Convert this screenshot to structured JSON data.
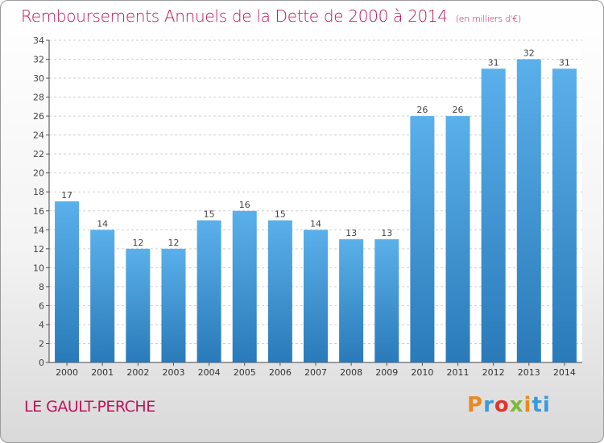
{
  "title": "Remboursements Annuels de la Dette de 2000 à 2014",
  "unit": "(en milliers d'€)",
  "commune": "LE GAULT-PERCHE",
  "logo": {
    "letters": [
      "P",
      "r",
      "o",
      "x",
      "i",
      "ti"
    ],
    "text": "Proxiti"
  },
  "colors": {
    "title": "#c0145a",
    "bar_top": "#5ab0ea",
    "bar_bottom": "#2a7ab9",
    "grid": "#d0d0d0"
  },
  "chart_data": {
    "type": "bar",
    "categories": [
      "2000",
      "2001",
      "2002",
      "2003",
      "2004",
      "2005",
      "2006",
      "2007",
      "2008",
      "2009",
      "2010",
      "2011",
      "2012",
      "2013",
      "2014"
    ],
    "values": [
      17,
      14,
      12,
      12,
      15,
      16,
      15,
      14,
      13,
      13,
      26,
      26,
      31,
      32,
      31
    ],
    "ylim": [
      0,
      34
    ],
    "yticks": [
      0,
      2,
      4,
      6,
      8,
      10,
      12,
      14,
      16,
      18,
      20,
      22,
      24,
      26,
      28,
      30,
      32,
      34
    ],
    "grid": true
  }
}
